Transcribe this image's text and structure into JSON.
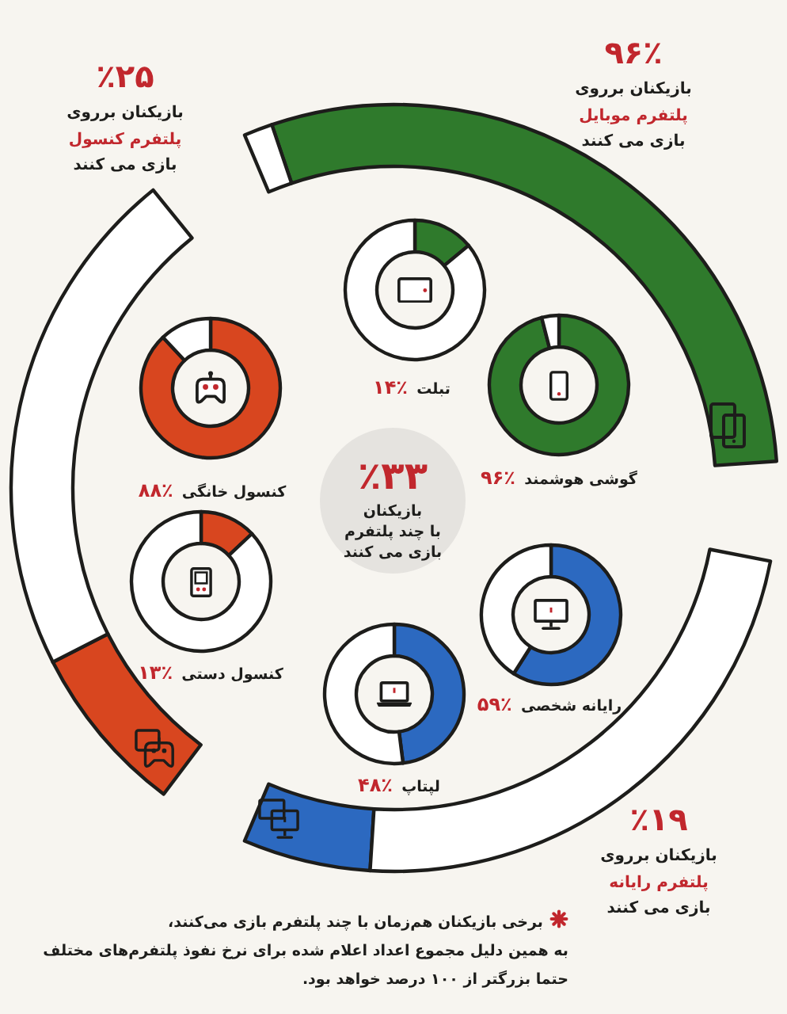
{
  "chart_data": [
    {
      "type": "donut",
      "title": "۹۶٪",
      "categories": [
        null,
        null
      ],
      "values": [
        96,
        4
      ],
      "colors": [
        "#2f7a2c",
        "#ffffff"
      ],
      "annotations": [
        "بازیکنان برروی",
        "پلتفرم موبایل",
        "بازی می کنند"
      ]
    },
    {
      "type": "donut",
      "title": "٪۲۵",
      "categories": [
        null,
        null
      ],
      "values": [
        25,
        75
      ],
      "colors": [
        "#d8461f",
        "#ffffff"
      ],
      "annotations": [
        "بازیکنان برروی",
        "پلتفرم کنسول",
        "بازی می کنند"
      ]
    },
    {
      "type": "donut",
      "title": "تبلت",
      "categories": [
        null,
        null
      ],
      "values": [
        14,
        86
      ],
      "colors": [
        "#2f7a2c",
        "#ffffff"
      ],
      "annotations": [
        "۱۴٪"
      ]
    },
    {
      "type": "donut",
      "title": "گوشی هوشمند",
      "categories": [
        null,
        null
      ],
      "values": [
        96,
        4
      ],
      "colors": [
        "#2f7a2c",
        "#ffffff"
      ],
      "annotations": [
        "۹۶٪"
      ]
    },
    {
      "type": "donut",
      "title": "کنسول خانگی",
      "categories": [
        null,
        null
      ],
      "values": [
        88,
        12
      ],
      "colors": [
        "#d8461f",
        "#ffffff"
      ],
      "annotations": [
        "۸۸٪"
      ]
    },
    {
      "type": "other",
      "title": "٪۳۳",
      "annotations": [
        "بازیکنان",
        "با چند پلتفرم",
        "بازی می کنند"
      ]
    },
    {
      "type": "donut",
      "title": "رایانه شخصی",
      "categories": [
        null,
        null
      ],
      "values": [
        59,
        41
      ],
      "colors": [
        "#2c69c0",
        "#ffffff"
      ],
      "annotations": [
        "۵۹٪"
      ]
    },
    {
      "type": "donut",
      "title": "کنسول دستی",
      "categories": [
        null,
        null
      ],
      "values": [
        13,
        87
      ],
      "colors": [
        "#d8461f",
        "#ffffff"
      ],
      "annotations": [
        "۱۳٪"
      ]
    },
    {
      "type": "donut",
      "title": "لپتاپ",
      "categories": [
        null,
        null
      ],
      "values": [
        48,
        52
      ],
      "colors": [
        "#2c69c0",
        "#ffffff"
      ],
      "annotations": [
        "۴۸٪"
      ]
    },
    {
      "type": "donut",
      "title": "٪۱۹",
      "categories": [
        null,
        null
      ],
      "values": [
        19,
        81
      ],
      "colors": [
        "#2c69c0",
        "#ffffff"
      ],
      "annotations": [
        "بازیکنان برروی",
        "پلتفرم رایانه",
        "بازی می کنند"
      ]
    },
    {
      "type": "other",
      "annotations": [
        "برخی بازیکنان هم‌زمان با چند پلتفرم بازی می‌کنند،\nبه همین دلیل مجموع اعداد اعلام شده برای نرخ نفوذ پلتفرم‌های مختلف\nحتما بزرگتر از ۱۰۰ درصد خواهد بود."
      ]
    }
  ]
}
